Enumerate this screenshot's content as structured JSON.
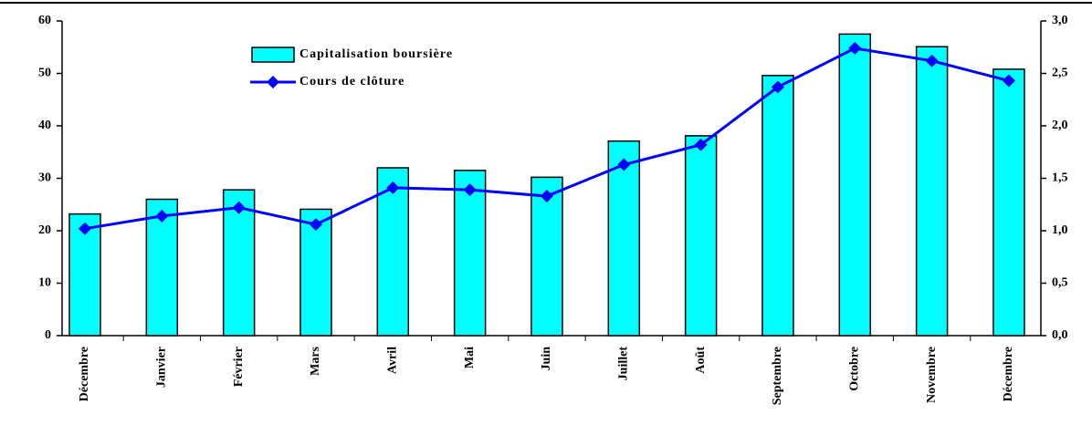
{
  "chart_data": {
    "type": "bar",
    "categories": [
      "Décembre",
      "Janvier",
      "Février",
      "Mars",
      "Avril",
      "Mai",
      "Juin",
      "Juillet",
      "Août",
      "Septembre",
      "Octobre",
      "Novembre",
      "Décembre"
    ],
    "series": [
      {
        "name": "Capitalisation boursière",
        "type": "bar",
        "color": "#00ffff",
        "values": [
          23.2,
          26,
          27.8,
          24.1,
          32,
          31.5,
          30.2,
          37.1,
          38.1,
          49.6,
          57.5,
          55.1,
          50.8
        ]
      },
      {
        "name": "Cours de clôture",
        "type": "line",
        "axis": "y2",
        "color": "#0000ff",
        "values": [
          1.02,
          1.14,
          1.22,
          1.06,
          1.41,
          1.39,
          1.33,
          1.63,
          1.82,
          2.37,
          2.74,
          2.62,
          2.43
        ]
      }
    ],
    "ylim": [
      0,
      60
    ],
    "yticks": [
      0,
      10,
      20,
      30,
      40,
      50,
      60
    ],
    "y2lim": [
      0,
      3
    ],
    "y2ticks": [
      {
        "value": 0,
        "label": "0,0"
      },
      {
        "value": 0.5,
        "label": "0,5"
      },
      {
        "value": 1,
        "label": "1,0"
      },
      {
        "value": 1.5,
        "label": "1,5"
      },
      {
        "value": 2,
        "label": "2,0"
      },
      {
        "value": 2.5,
        "label": "2,5"
      },
      {
        "value": 3,
        "label": "3,0"
      }
    ]
  }
}
